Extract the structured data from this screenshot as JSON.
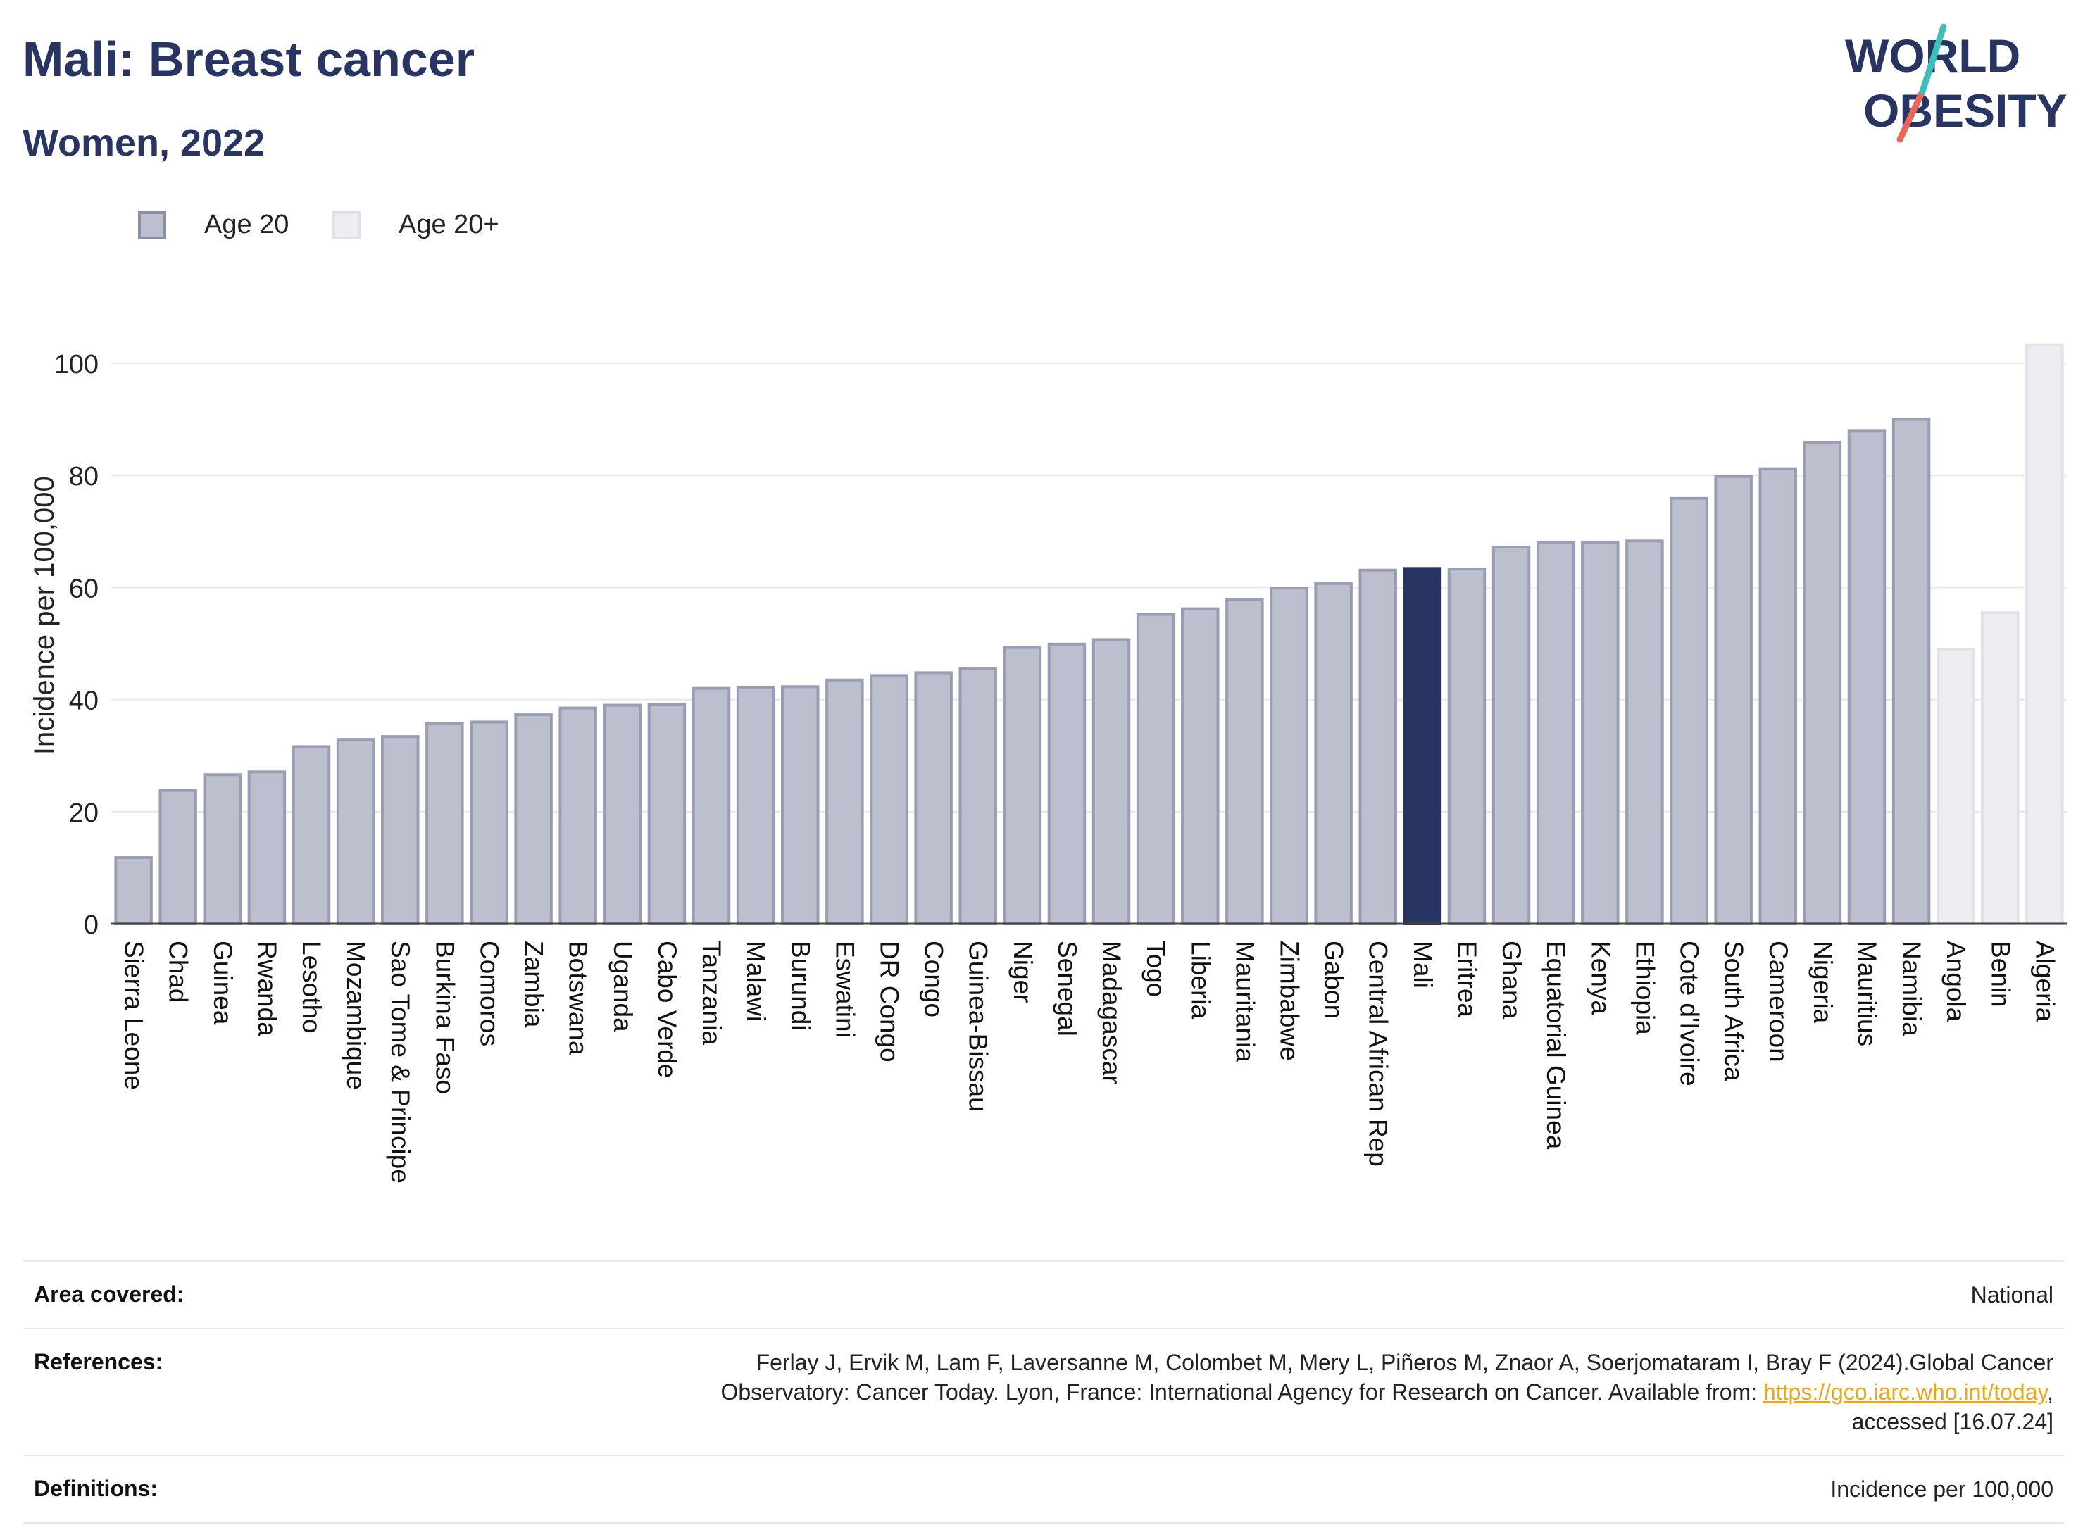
{
  "header": {
    "title": "Mali: Breast cancer",
    "subtitle": "Women, 2022",
    "logo_line1": "WORLD",
    "logo_line2": "OBESITY"
  },
  "legend": [
    {
      "label": "Age 20",
      "color": "#8a8fa8"
    },
    {
      "label": "Age 20+",
      "color": "#dfe0e8"
    }
  ],
  "colors": {
    "bar_fill": "#bcbfcd",
    "bar_stroke": "#9a9db3",
    "highlight": "#283462",
    "light_fill": "#eeeef2",
    "light_stroke": "#e2e3ea",
    "grid": "#e6e6ec",
    "title": "#283462"
  },
  "chart_data": {
    "type": "bar",
    "ylabel": "Incidence per 100,000",
    "ylim": [
      0,
      110
    ],
    "yticks": [
      0,
      20,
      40,
      60,
      80,
      100
    ],
    "grid": true,
    "legend_placement": "top-left",
    "highlight": "Mali",
    "categories": [
      "Sierra Leone",
      "Chad",
      "Guinea",
      "Rwanda",
      "Lesotho",
      "Mozambique",
      "Sao Tome & Principe",
      "Burkina Faso",
      "Comoros",
      "Zambia",
      "Botswana",
      "Uganda",
      "Cabo Verde",
      "Tanzania",
      "Malawi",
      "Burundi",
      "Eswatini",
      "DR Congo",
      "Congo",
      "Guinea-Bissau",
      "Niger",
      "Senegal",
      "Madagascar",
      "Togo",
      "Liberia",
      "Mauritania",
      "Zimbabwe",
      "Gabon",
      "Central African Rep",
      "Mali",
      "Eritrea",
      "Ghana",
      "Equatorial Guinea",
      "Kenya",
      "Ethiopia",
      "Cote d'Ivoire",
      "South Africa",
      "Cameroon",
      "Nigeria",
      "Mauritius",
      "Namibia",
      "Angola",
      "Benin",
      "Algeria"
    ],
    "values": [
      11.8,
      23.8,
      26.6,
      27.1,
      31.6,
      32.9,
      33.4,
      35.7,
      36.0,
      37.3,
      38.5,
      39.0,
      39.2,
      42.0,
      42.1,
      42.3,
      43.5,
      44.3,
      44.8,
      45.5,
      49.3,
      49.9,
      50.7,
      55.2,
      56.2,
      57.8,
      59.9,
      60.7,
      63.1,
      63.4,
      63.3,
      67.2,
      68.1,
      68.1,
      68.3,
      75.9,
      79.8,
      81.2,
      85.9,
      87.9,
      90.0,
      48.9,
      55.5,
      103.3
    ],
    "series_membership": [
      "Age 20",
      "Age 20",
      "Age 20",
      "Age 20",
      "Age 20",
      "Age 20",
      "Age 20",
      "Age 20",
      "Age 20",
      "Age 20",
      "Age 20",
      "Age 20",
      "Age 20",
      "Age 20",
      "Age 20",
      "Age 20",
      "Age 20",
      "Age 20",
      "Age 20",
      "Age 20",
      "Age 20",
      "Age 20",
      "Age 20",
      "Age 20",
      "Age 20",
      "Age 20",
      "Age 20",
      "Age 20",
      "Age 20",
      "Age 20",
      "Age 20",
      "Age 20",
      "Age 20",
      "Age 20",
      "Age 20",
      "Age 20",
      "Age 20",
      "Age 20",
      "Age 20",
      "Age 20",
      "Age 20",
      "Age 20+",
      "Age 20+",
      "Age 20+"
    ]
  },
  "info": {
    "area_label": "Area covered:",
    "area_value": "National",
    "ref_label": "References:",
    "ref_text_line1": "Ferlay J, Ervik M, Lam F, Laversanne M, Colombet M, Mery L, Piñeros M, Znaor A, Soerjomataram I, Bray F (2024).Global Cancer",
    "ref_text_line2": "Observatory: Cancer Today. Lyon, France: International Agency for Research on Cancer. Available from: ",
    "ref_link": "https://gco.iarc.who.int/today",
    "ref_text_line3": "accessed [16.07.24]",
    "def_label": "Definitions:",
    "def_value": "Incidence per 100,000"
  }
}
